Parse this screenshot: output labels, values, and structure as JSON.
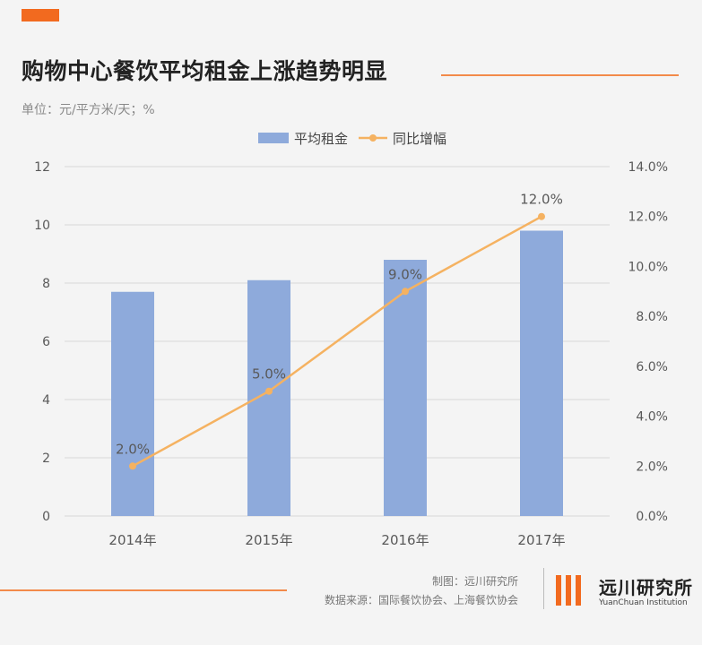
{
  "header": {
    "title": "购物中心餐饮平均租金上涨趋势明显",
    "unit": "单位：元/平方米/天；%"
  },
  "footer": {
    "credit_line1": "制图：远川研究所",
    "credit_line2": "数据来源：国际餐饮协会、上海餐饮协会",
    "logo_name": "远川研究所",
    "logo_en": "YuanChuan Institution"
  },
  "colors": {
    "bar": "#8eaadb",
    "line": "#f5b261",
    "accent": "#f26a1f",
    "grid": "#d9d9d9",
    "axis_text": "#595959"
  },
  "chart_data": {
    "type": "bar",
    "categories": [
      "2014年",
      "2015年",
      "2016年",
      "2017年"
    ],
    "series": [
      {
        "name": "平均租金",
        "type": "bar",
        "axis": "left",
        "values": [
          7.7,
          8.1,
          8.8,
          9.8
        ]
      },
      {
        "name": "同比增幅",
        "type": "line",
        "axis": "right",
        "values": [
          2.0,
          5.0,
          9.0,
          12.0
        ],
        "labels": [
          "2.0%",
          "5.0%",
          "9.0%",
          "12.0%"
        ]
      }
    ],
    "y_left": {
      "min": 0,
      "max": 12,
      "ticks": [
        "0",
        "2",
        "4",
        "6",
        "8",
        "10",
        "12"
      ]
    },
    "y_right": {
      "min": 0,
      "max": 14,
      "ticks": [
        "0.0%",
        "2.0%",
        "4.0%",
        "6.0%",
        "8.0%",
        "10.0%",
        "12.0%",
        "14.0%"
      ]
    },
    "legend_position": "top-center",
    "grid": true
  }
}
